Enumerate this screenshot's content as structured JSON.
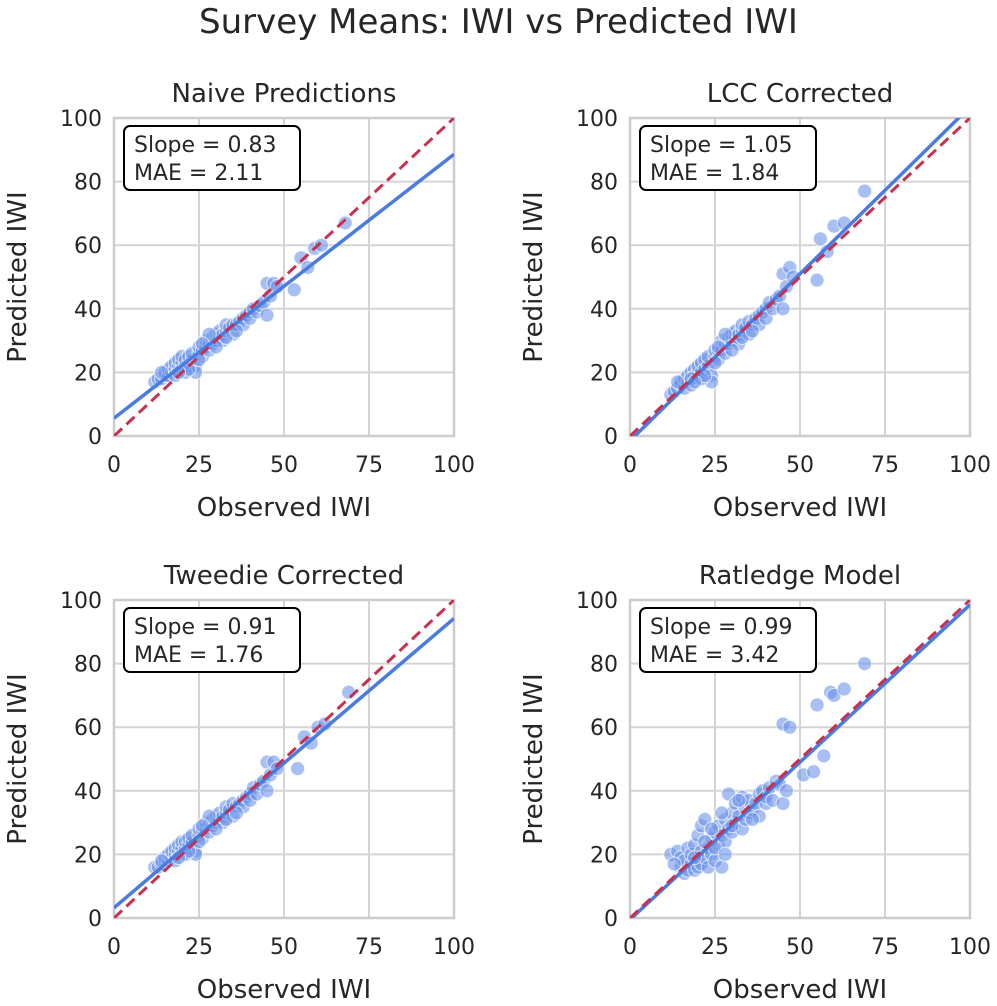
{
  "figure": {
    "title": "Survey Means: IWI vs Predicted IWI"
  },
  "colors": {
    "points": "#6d95ea",
    "fit": "#4a7be0",
    "identity": "#c8304f",
    "grid": "#d4d4d4",
    "frame": "#cccccc",
    "text": "#262626"
  },
  "chart_data": [
    {
      "type": "scatter",
      "title": "Naive Predictions",
      "xlabel": "Observed IWI",
      "ylabel": "Predicted IWI",
      "xlim": [
        0,
        100
      ],
      "ylim": [
        0,
        100
      ],
      "xticks": [
        "0",
        "25",
        "50",
        "75",
        "100"
      ],
      "yticks": [
        "0",
        "20",
        "40",
        "60",
        "80",
        "100"
      ],
      "annotation": [
        "Slope = 0.83",
        "MAE = 2.11"
      ],
      "fit": {
        "slope": 0.83,
        "intercept": 5.6
      },
      "identity": {
        "slope": 1,
        "intercept": 0
      },
      "points": [
        [
          12,
          17
        ],
        [
          13,
          18
        ],
        [
          14,
          18
        ],
        [
          15,
          19
        ],
        [
          15,
          20
        ],
        [
          16,
          19
        ],
        [
          16,
          21
        ],
        [
          17,
          20
        ],
        [
          17,
          22
        ],
        [
          18,
          21
        ],
        [
          18,
          23
        ],
        [
          19,
          22
        ],
        [
          19,
          24
        ],
        [
          20,
          21
        ],
        [
          20,
          23
        ],
        [
          20,
          25
        ],
        [
          21,
          22
        ],
        [
          21,
          24
        ],
        [
          22,
          23
        ],
        [
          22,
          25
        ],
        [
          23,
          24
        ],
        [
          23,
          26
        ],
        [
          24,
          22
        ],
        [
          24,
          20
        ],
        [
          25,
          26
        ],
        [
          25,
          28
        ],
        [
          26,
          25
        ],
        [
          26,
          27
        ],
        [
          27,
          28
        ],
        [
          27,
          30
        ],
        [
          28,
          27
        ],
        [
          28,
          29
        ],
        [
          29,
          29
        ],
        [
          29,
          31
        ],
        [
          30,
          30
        ],
        [
          30,
          32
        ],
        [
          31,
          31
        ],
        [
          31,
          33
        ],
        [
          32,
          32
        ],
        [
          32,
          30
        ],
        [
          33,
          33
        ],
        [
          33,
          35
        ],
        [
          34,
          34
        ],
        [
          35,
          32
        ],
        [
          35,
          35
        ],
        [
          36,
          35
        ],
        [
          37,
          36
        ],
        [
          38,
          37
        ],
        [
          38,
          35
        ],
        [
          39,
          38
        ],
        [
          40,
          39
        ],
        [
          40,
          37
        ],
        [
          41,
          40
        ],
        [
          42,
          39
        ],
        [
          43,
          41
        ],
        [
          44,
          42
        ],
        [
          45,
          38
        ],
        [
          45,
          48
        ],
        [
          46,
          44
        ],
        [
          47,
          48
        ],
        [
          48,
          47
        ],
        [
          53,
          46
        ],
        [
          55,
          56
        ],
        [
          57,
          53
        ],
        [
          59,
          59
        ],
        [
          61,
          60
        ],
        [
          68,
          67
        ],
        [
          14,
          20
        ],
        [
          18,
          19
        ],
        [
          21,
          20
        ],
        [
          25,
          24
        ],
        [
          28,
          32
        ],
        [
          30,
          28
        ],
        [
          33,
          31
        ],
        [
          36,
          33
        ],
        [
          22,
          21
        ],
        [
          26,
          29
        ],
        [
          19,
          20
        ]
      ]
    },
    {
      "type": "scatter",
      "title": "LCC Corrected",
      "xlabel": "Observed IWI",
      "ylabel": "Predicted IWI",
      "xlim": [
        0,
        100
      ],
      "ylim": [
        0,
        100
      ],
      "xticks": [
        "0",
        "25",
        "50",
        "75",
        "100"
      ],
      "yticks": [
        "0",
        "20",
        "40",
        "60",
        "80",
        "100"
      ],
      "annotation": [
        "Slope = 1.05",
        "MAE = 1.84"
      ],
      "fit": {
        "slope": 1.05,
        "intercept": -1.5
      },
      "identity": {
        "slope": 1,
        "intercept": 0
      },
      "points": [
        [
          12,
          13
        ],
        [
          13,
          14
        ],
        [
          14,
          15
        ],
        [
          15,
          16
        ],
        [
          15,
          17
        ],
        [
          16,
          15
        ],
        [
          16,
          18
        ],
        [
          17,
          17
        ],
        [
          17,
          19
        ],
        [
          18,
          16
        ],
        [
          18,
          20
        ],
        [
          19,
          19
        ],
        [
          19,
          21
        ],
        [
          20,
          18
        ],
        [
          20,
          20
        ],
        [
          20,
          22
        ],
        [
          21,
          20
        ],
        [
          21,
          23
        ],
        [
          22,
          21
        ],
        [
          22,
          24
        ],
        [
          23,
          22
        ],
        [
          23,
          25
        ],
        [
          24,
          19
        ],
        [
          24,
          17
        ],
        [
          25,
          25
        ],
        [
          25,
          27
        ],
        [
          26,
          24
        ],
        [
          26,
          27
        ],
        [
          27,
          27
        ],
        [
          27,
          30
        ],
        [
          28,
          26
        ],
        [
          28,
          29
        ],
        [
          29,
          29
        ],
        [
          29,
          31
        ],
        [
          30,
          30
        ],
        [
          30,
          32
        ],
        [
          31,
          31
        ],
        [
          31,
          33
        ],
        [
          32,
          32
        ],
        [
          32,
          29
        ],
        [
          33,
          33
        ],
        [
          33,
          35
        ],
        [
          34,
          34
        ],
        [
          35,
          32
        ],
        [
          35,
          36
        ],
        [
          36,
          35
        ],
        [
          37,
          37
        ],
        [
          38,
          38
        ],
        [
          38,
          35
        ],
        [
          39,
          39
        ],
        [
          40,
          40
        ],
        [
          40,
          37
        ],
        [
          41,
          42
        ],
        [
          42,
          40
        ],
        [
          43,
          43
        ],
        [
          44,
          44
        ],
        [
          45,
          40
        ],
        [
          45,
          51
        ],
        [
          46,
          47
        ],
        [
          47,
          53
        ],
        [
          48,
          50
        ],
        [
          55,
          49
        ],
        [
          56,
          62
        ],
        [
          58,
          58
        ],
        [
          60,
          66
        ],
        [
          63,
          67
        ],
        [
          69,
          77
        ],
        [
          14,
          17
        ],
        [
          18,
          18
        ],
        [
          21,
          18
        ],
        [
          25,
          23
        ],
        [
          28,
          32
        ],
        [
          30,
          27
        ],
        [
          33,
          31
        ],
        [
          36,
          33
        ],
        [
          22,
          19
        ],
        [
          26,
          28
        ],
        [
          19,
          17
        ]
      ]
    },
    {
      "type": "scatter",
      "title": "Tweedie Corrected",
      "xlabel": "Observed IWI",
      "ylabel": "Predicted IWI",
      "xlim": [
        0,
        100
      ],
      "ylim": [
        0,
        100
      ],
      "xticks": [
        "0",
        "25",
        "50",
        "75",
        "100"
      ],
      "yticks": [
        "0",
        "20",
        "40",
        "60",
        "80",
        "100"
      ],
      "annotation": [
        "Slope = 0.91",
        "MAE = 1.76"
      ],
      "fit": {
        "slope": 0.91,
        "intercept": 3.2
      },
      "identity": {
        "slope": 1,
        "intercept": 0
      },
      "points": [
        [
          12,
          16
        ],
        [
          13,
          16
        ],
        [
          14,
          17
        ],
        [
          15,
          18
        ],
        [
          15,
          19
        ],
        [
          16,
          18
        ],
        [
          16,
          20
        ],
        [
          17,
          19
        ],
        [
          17,
          21
        ],
        [
          18,
          20
        ],
        [
          18,
          22
        ],
        [
          19,
          21
        ],
        [
          19,
          23
        ],
        [
          20,
          20
        ],
        [
          20,
          22
        ],
        [
          20,
          24
        ],
        [
          21,
          22
        ],
        [
          21,
          24
        ],
        [
          22,
          23
        ],
        [
          22,
          25
        ],
        [
          23,
          24
        ],
        [
          23,
          26
        ],
        [
          24,
          21
        ],
        [
          24,
          20
        ],
        [
          25,
          26
        ],
        [
          25,
          28
        ],
        [
          26,
          25
        ],
        [
          26,
          28
        ],
        [
          27,
          28
        ],
        [
          27,
          30
        ],
        [
          28,
          27
        ],
        [
          28,
          30
        ],
        [
          29,
          29
        ],
        [
          29,
          31
        ],
        [
          30,
          30
        ],
        [
          30,
          32
        ],
        [
          31,
          31
        ],
        [
          31,
          33
        ],
        [
          32,
          32
        ],
        [
          32,
          30
        ],
        [
          33,
          33
        ],
        [
          33,
          35
        ],
        [
          34,
          34
        ],
        [
          35,
          32
        ],
        [
          35,
          36
        ],
        [
          36,
          35
        ],
        [
          37,
          36
        ],
        [
          38,
          37
        ],
        [
          38,
          35
        ],
        [
          39,
          38
        ],
        [
          40,
          39
        ],
        [
          40,
          37
        ],
        [
          41,
          41
        ],
        [
          42,
          39
        ],
        [
          43,
          42
        ],
        [
          44,
          43
        ],
        [
          45,
          40
        ],
        [
          45,
          49
        ],
        [
          46,
          45
        ],
        [
          47,
          49
        ],
        [
          48,
          47
        ],
        [
          54,
          47
        ],
        [
          56,
          57
        ],
        [
          58,
          55
        ],
        [
          60,
          60
        ],
        [
          62,
          61
        ],
        [
          69,
          71
        ],
        [
          14,
          18
        ],
        [
          18,
          18
        ],
        [
          21,
          20
        ],
        [
          25,
          24
        ],
        [
          28,
          32
        ],
        [
          30,
          28
        ],
        [
          33,
          31
        ],
        [
          36,
          33
        ],
        [
          22,
          21
        ],
        [
          26,
          29
        ],
        [
          19,
          19
        ]
      ]
    },
    {
      "type": "scatter",
      "title": "Ratledge Model",
      "xlabel": "Observed IWI",
      "ylabel": "Predicted IWI",
      "xlim": [
        0,
        100
      ],
      "ylim": [
        0,
        100
      ],
      "xticks": [
        "0",
        "25",
        "50",
        "75",
        "100"
      ],
      "yticks": [
        "0",
        "20",
        "40",
        "60",
        "80",
        "100"
      ],
      "annotation": [
        "Slope = 0.99",
        "MAE = 3.42"
      ],
      "fit": {
        "slope": 0.99,
        "intercept": -0.5
      },
      "identity": {
        "slope": 1,
        "intercept": 0
      },
      "points": [
        [
          12,
          20
        ],
        [
          14,
          21
        ],
        [
          15,
          16
        ],
        [
          15,
          19
        ],
        [
          16,
          14
        ],
        [
          16,
          18
        ],
        [
          17,
          15
        ],
        [
          17,
          22
        ],
        [
          18,
          17
        ],
        [
          18,
          20
        ],
        [
          19,
          15
        ],
        [
          19,
          23
        ],
        [
          20,
          18
        ],
        [
          20,
          26
        ],
        [
          20,
          16
        ],
        [
          21,
          21
        ],
        [
          21,
          17
        ],
        [
          21,
          29
        ],
        [
          22,
          31
        ],
        [
          22,
          19
        ],
        [
          23,
          22
        ],
        [
          23,
          16
        ],
        [
          24,
          25
        ],
        [
          24,
          20
        ],
        [
          25,
          27
        ],
        [
          25,
          18
        ],
        [
          26,
          29
        ],
        [
          26,
          23
        ],
        [
          27,
          26
        ],
        [
          27,
          16
        ],
        [
          28,
          31
        ],
        [
          28,
          24
        ],
        [
          29,
          28
        ],
        [
          29,
          39
        ],
        [
          30,
          27
        ],
        [
          30,
          33
        ],
        [
          31,
          36
        ],
        [
          31,
          30
        ],
        [
          32,
          32
        ],
        [
          33,
          28
        ],
        [
          33,
          38
        ],
        [
          34,
          35
        ],
        [
          34,
          31
        ],
        [
          35,
          37
        ],
        [
          35,
          33
        ],
        [
          36,
          34
        ],
        [
          37,
          36
        ],
        [
          38,
          32
        ],
        [
          38,
          39
        ],
        [
          39,
          40
        ],
        [
          40,
          36
        ],
        [
          40,
          38
        ],
        [
          41,
          41
        ],
        [
          42,
          37
        ],
        [
          43,
          43
        ],
        [
          44,
          42
        ],
        [
          45,
          36
        ],
        [
          45,
          61
        ],
        [
          46,
          40
        ],
        [
          47,
          60
        ],
        [
          51,
          45
        ],
        [
          54,
          46
        ],
        [
          55,
          67
        ],
        [
          57,
          51
        ],
        [
          59,
          71
        ],
        [
          60,
          70
        ],
        [
          63,
          72
        ],
        [
          69,
          80
        ],
        [
          13,
          17
        ],
        [
          19,
          19
        ],
        [
          22,
          24
        ],
        [
          25,
          22
        ],
        [
          28,
          20
        ],
        [
          30,
          29
        ],
        [
          32,
          37
        ],
        [
          36,
          31
        ],
        [
          24,
          28
        ],
        [
          27,
          33
        ]
      ]
    }
  ]
}
